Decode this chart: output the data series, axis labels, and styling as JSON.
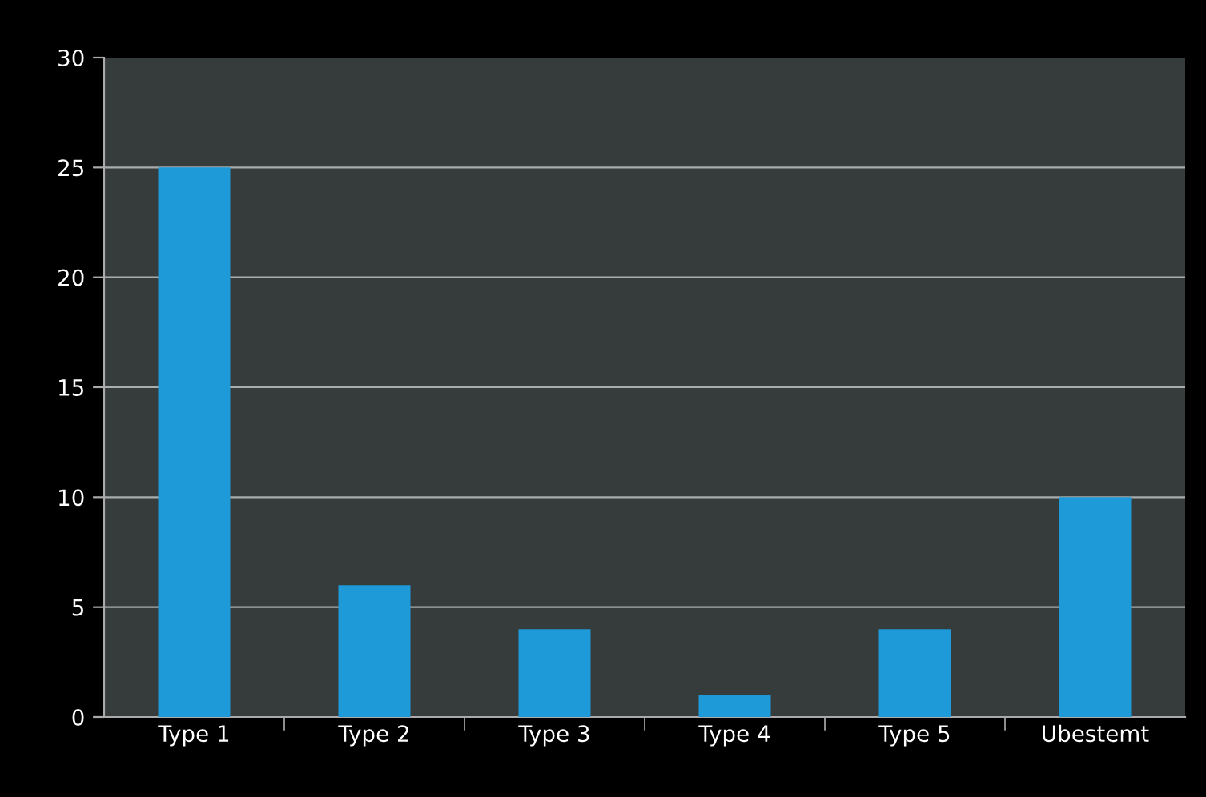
{
  "chart_data": {
    "type": "bar",
    "categories": [
      "Type 1",
      "Type 2",
      "Type 3",
      "Type 4",
      "Type 5",
      "Ubestemt"
    ],
    "values": [
      25,
      6,
      4,
      1,
      4,
      10
    ],
    "color": "#1e9ad8",
    "ylim": [
      0,
      30
    ],
    "yticks": [
      0,
      5,
      10,
      15,
      20,
      25,
      30
    ],
    "grid": "y"
  }
}
